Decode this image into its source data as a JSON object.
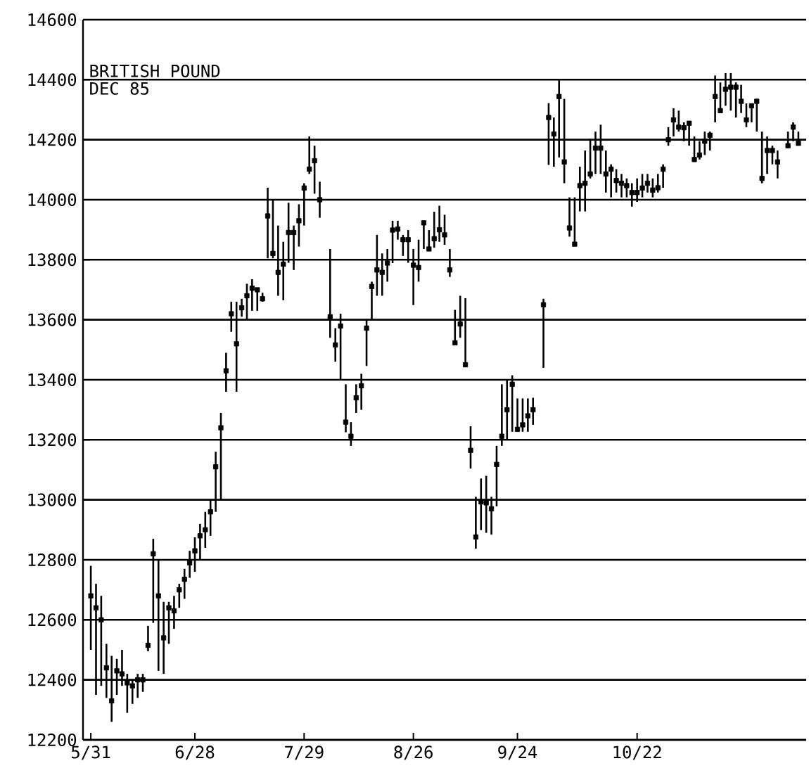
{
  "chart_data": {
    "type": "scatter",
    "title": "BRITISH POUND",
    "subtitle": "DEC 85",
    "categories": [
      "5/31",
      null,
      null,
      null,
      null,
      null,
      null,
      null,
      null,
      null,
      null,
      null,
      null,
      null,
      null,
      null,
      null,
      null,
      null,
      null,
      "6/28",
      null,
      null,
      null,
      null,
      null,
      null,
      null,
      null,
      null,
      null,
      null,
      null,
      null,
      null,
      null,
      null,
      null,
      null,
      null,
      null,
      "7/29",
      null,
      null,
      null,
      null,
      null,
      null,
      null,
      null,
      null,
      null,
      null,
      null,
      null,
      null,
      null,
      null,
      null,
      null,
      null,
      null,
      "8/26",
      null,
      null,
      null,
      null,
      null,
      null,
      null,
      null,
      null,
      null,
      null,
      null,
      null,
      null,
      null,
      null,
      null,
      null,
      null,
      "9/24",
      null,
      null,
      null,
      null,
      null,
      null,
      null,
      null,
      null,
      null,
      null,
      null,
      null,
      null,
      null,
      null,
      null,
      null,
      null,
      null,
      null,
      null,
      "10/22",
      null,
      null,
      null,
      null,
      null,
      null,
      null,
      null,
      null,
      null,
      null,
      null,
      null,
      null,
      null,
      null,
      null,
      null,
      null,
      null,
      null,
      null,
      null,
      null,
      null,
      null,
      null,
      null,
      null,
      null,
      null
    ],
    "values": [
      12680,
      12640,
      12600,
      12440,
      12330,
      12430,
      12420,
      12390,
      12380,
      12400,
      12400,
      12515,
      12820,
      12680,
      12540,
      12640,
      12630,
      12700,
      12735,
      12790,
      12830,
      12880,
      12900,
      12960,
      13110,
      13240,
      13430,
      13620,
      13520,
      13640,
      13680,
      13705,
      13700,
      13670,
      13946,
      13821,
      13758,
      13785,
      13891,
      13891,
      13930,
      14039,
      14102,
      14130,
      14000,
      null,
      13610,
      13516,
      13579,
      13259,
      13212,
      13340,
      13380,
      13572,
      13711,
      13766,
      13758,
      13789,
      13899,
      13902,
      13867,
      13867,
      13782,
      13774,
      13923,
      13836,
      13870,
      13900,
      13883,
      13766,
      13523,
      13586,
      13450,
      13165,
      12876,
      12993,
      12990,
      12970,
      13118,
      13212,
      13300,
      13385,
      13235,
      13250,
      13280,
      13300,
      null,
      13650,
      14274,
      14219,
      14344,
      14126,
      13906,
      13852,
      14047,
      14055,
      14086,
      14172,
      14172,
      14086,
      14102,
      14064,
      14055,
      14047,
      14024,
      14024,
      14039,
      14055,
      14032,
      14040,
      14102,
      14200,
      14266,
      14242,
      14240,
      14255,
      14134,
      14149,
      14195,
      14215,
      14344,
      14297,
      14368,
      14375,
      14375,
      14328,
      14266,
      14313,
      14328,
      14071,
      14164,
      14164,
      14126,
      null,
      14180,
      14242,
      14188
    ],
    "errors": [
      [
        12500,
        12780
      ],
      [
        12350,
        12720
      ],
      [
        12380,
        12680
      ],
      [
        12340,
        12520
      ],
      [
        12260,
        12480
      ],
      [
        12350,
        12470
      ],
      [
        12380,
        12500
      ],
      [
        12290,
        12420
      ],
      [
        12320,
        12400
      ],
      [
        12340,
        12420
      ],
      [
        12360,
        12420
      ],
      [
        12495,
        12580
      ],
      [
        12590,
        12870
      ],
      [
        12430,
        12800
      ],
      [
        12420,
        12660
      ],
      [
        12520,
        12660
      ],
      [
        12570,
        12680
      ],
      [
        12640,
        12720
      ],
      [
        12670,
        12770
      ],
      [
        12740,
        12830
      ],
      [
        12760,
        12875
      ],
      [
        12800,
        12920
      ],
      [
        12840,
        12960
      ],
      [
        12880,
        13000
      ],
      [
        12960,
        13160
      ],
      [
        13000,
        13290
      ],
      [
        13360,
        13490
      ],
      [
        13560,
        13660
      ],
      [
        13360,
        13660
      ],
      [
        13610,
        13670
      ],
      [
        13600,
        13720
      ],
      [
        13630,
        13735
      ],
      [
        13630,
        13700
      ],
      [
        13660,
        13690
      ],
      [
        13805,
        14040
      ],
      [
        13805,
        14000
      ],
      [
        13680,
        13914
      ],
      [
        13665,
        13860
      ],
      [
        13790,
        13990
      ],
      [
        13766,
        13914
      ],
      [
        13844,
        13985
      ],
      [
        13914,
        14055
      ],
      [
        14086,
        14211
      ],
      [
        14020,
        14180
      ],
      [
        13940,
        14060
      ],
      null,
      [
        13540,
        13836
      ],
      [
        13460,
        13572
      ],
      [
        13400,
        13620
      ],
      [
        13225,
        13385
      ],
      [
        13180,
        13259
      ],
      [
        13290,
        13385
      ],
      [
        13300,
        13420
      ],
      [
        13446,
        13602
      ],
      [
        13602,
        13727
      ],
      [
        13680,
        13883
      ],
      [
        13680,
        13821
      ],
      [
        13727,
        13836
      ],
      [
        13789,
        13930
      ],
      [
        13867,
        13930
      ],
      [
        13813,
        13883
      ],
      [
        13790,
        13899
      ],
      [
        13649,
        13836
      ],
      [
        13727,
        13867
      ],
      [
        13836,
        13930
      ],
      [
        13836,
        13899
      ],
      [
        13840,
        13960
      ],
      [
        13860,
        13980
      ],
      [
        13850,
        13950
      ],
      [
        13743,
        13836
      ],
      [
        13523,
        13633
      ],
      [
        13540,
        13680
      ],
      [
        13446,
        13672
      ],
      [
        13104,
        13245
      ],
      [
        12837,
        13010
      ],
      [
        12899,
        13071
      ],
      [
        12890,
        13080
      ],
      [
        12884,
        13010
      ],
      [
        12978,
        13180
      ],
      [
        13180,
        13385
      ],
      [
        13200,
        13400
      ],
      [
        13227,
        13415
      ],
      [
        13227,
        13338
      ],
      [
        13227,
        13338
      ],
      [
        13227,
        13338
      ],
      [
        13250,
        13340
      ],
      null,
      [
        13440,
        13670
      ],
      [
        14116,
        14322
      ],
      [
        14110,
        14274
      ],
      [
        14141,
        14398
      ],
      [
        14055,
        14336
      ],
      [
        13877,
        14008
      ],
      [
        13852,
        14008
      ],
      [
        13961,
        14110
      ],
      [
        13961,
        14164
      ],
      [
        14071,
        14203
      ],
      [
        14086,
        14227
      ],
      [
        14086,
        14250
      ],
      [
        14024,
        14164
      ],
      [
        14008,
        14118
      ],
      [
        14024,
        14102
      ],
      [
        14008,
        14086
      ],
      [
        14008,
        14071
      ],
      [
        13977,
        14055
      ],
      [
        13993,
        14071
      ],
      [
        14008,
        14086
      ],
      [
        14024,
        14086
      ],
      [
        14008,
        14071
      ],
      [
        14024,
        14086
      ],
      [
        14040,
        14118
      ],
      [
        14180,
        14242
      ],
      [
        14211,
        14305
      ],
      [
        14227,
        14297
      ],
      [
        14195,
        14258
      ],
      [
        14180,
        14258
      ],
      [
        14126,
        14211
      ],
      [
        14134,
        14195
      ],
      [
        14149,
        14227
      ],
      [
        14164,
        14227
      ],
      [
        14258,
        14414
      ],
      [
        14289,
        14391
      ],
      [
        14313,
        14422
      ],
      [
        14297,
        14422
      ],
      [
        14274,
        14391
      ],
      [
        14289,
        14383
      ],
      [
        14242,
        14321
      ],
      [
        14258,
        14321
      ],
      [
        14227,
        14336
      ],
      [
        14055,
        14227
      ],
      [
        14086,
        14211
      ],
      [
        14118,
        14180
      ],
      [
        14071,
        14164
      ],
      null,
      [
        14180,
        14227
      ],
      [
        14195,
        14258
      ],
      [
        14188,
        14227
      ]
    ],
    "color": "#000000",
    "marker": "square",
    "ylim": [
      12200,
      14600
    ],
    "yticks": [
      12200,
      12400,
      12600,
      12800,
      13000,
      13200,
      13400,
      13600,
      13800,
      14000,
      14200,
      14400,
      14600
    ],
    "grid": "y"
  }
}
